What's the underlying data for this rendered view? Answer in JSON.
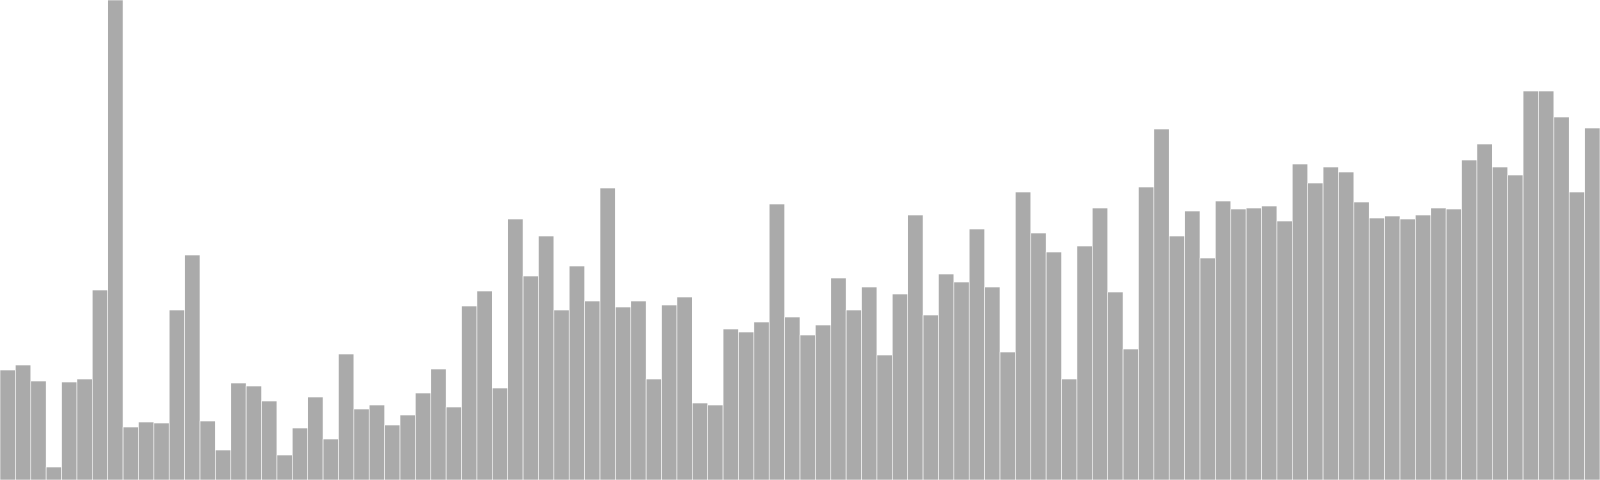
{
  "chart_data": {
    "type": "bar",
    "title": "",
    "xlabel": "",
    "ylabel": "",
    "ylim": [
      0,
      480
    ],
    "grid": false,
    "legend": "none",
    "bar_color": "#aaaaaa",
    "bar_edge_color": "#ffffff",
    "values": [
      110,
      115,
      99,
      13,
      98,
      101,
      190,
      480,
      53,
      58,
      57,
      170,
      225,
      59,
      30,
      97,
      94,
      79,
      25,
      52,
      83,
      41,
      126,
      71,
      75,
      55,
      65,
      87,
      111,
      73,
      174,
      189,
      92,
      261,
      204,
      244,
      170,
      214,
      179,
      292,
      173,
      179,
      101,
      175,
      183,
      77,
      75,
      151,
      148,
      158,
      276,
      163,
      145,
      155,
      202,
      170,
      193,
      125,
      186,
      265,
      165,
      206,
      198,
      251,
      193,
      128,
      288,
      247,
      228,
      101,
      234,
      272,
      188,
      131,
      293,
      351,
      244,
      269,
      222,
      279,
      271,
      272,
      274,
      259,
      316,
      297,
      313,
      308,
      278,
      262,
      264,
      261,
      265,
      272,
      271,
      320,
      336,
      313,
      305,
      389,
      389,
      363,
      288,
      352
    ]
  }
}
